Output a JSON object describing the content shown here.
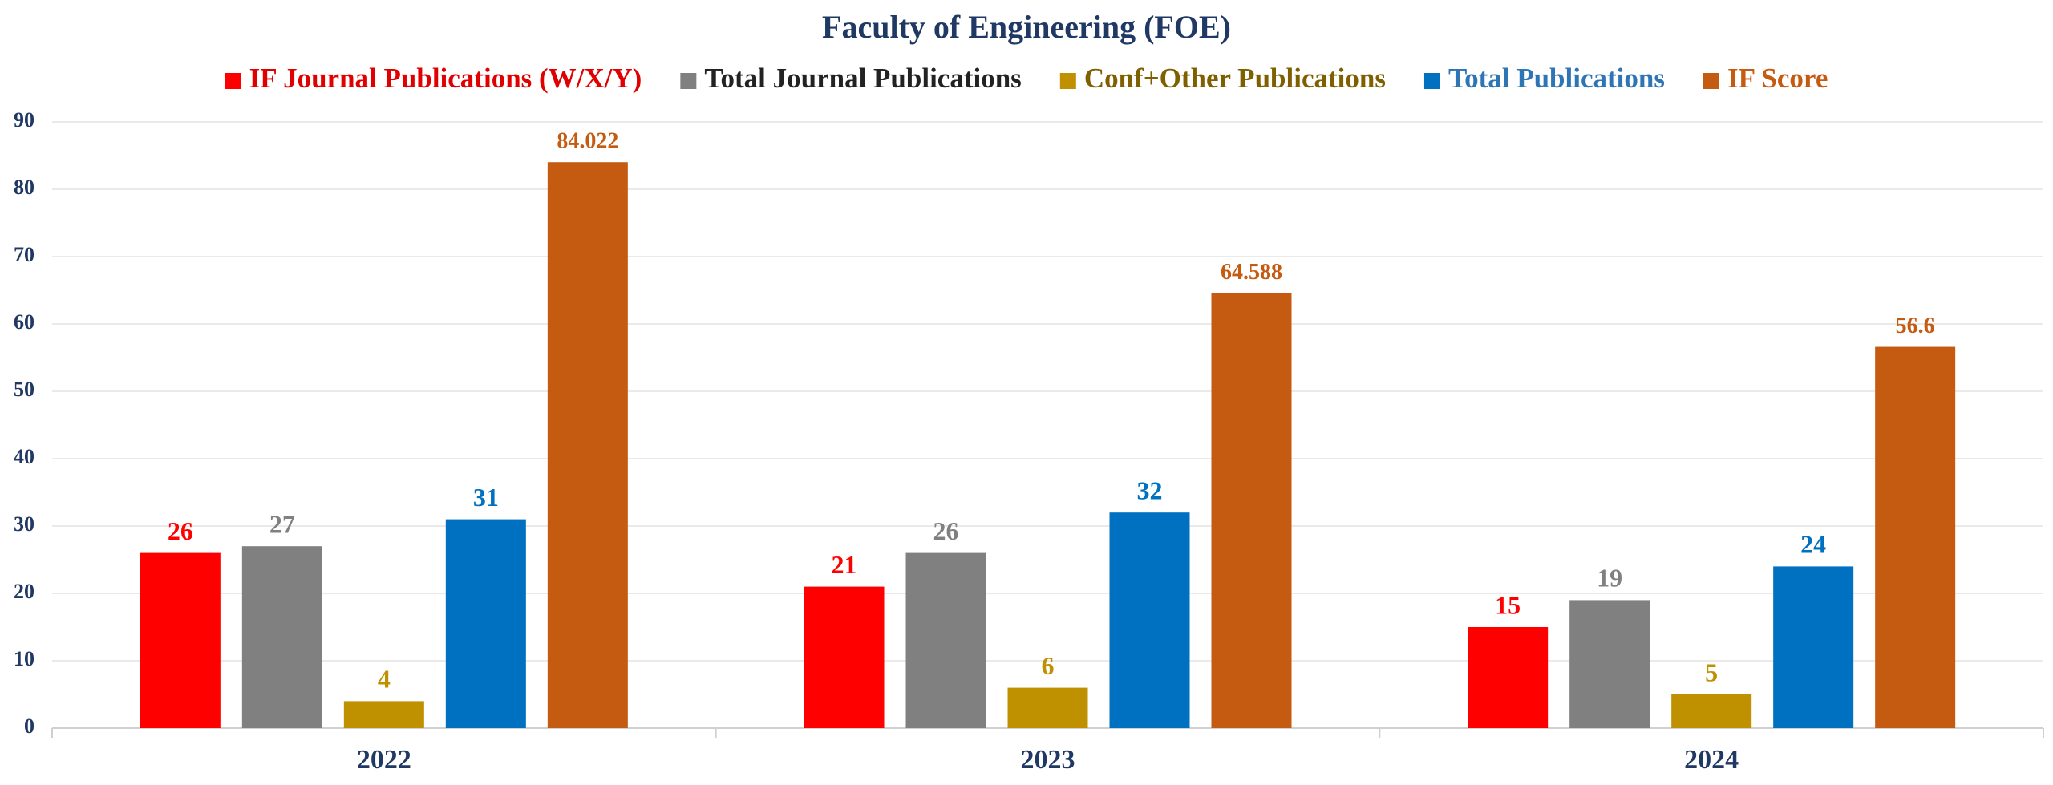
{
  "chart_data": {
    "type": "bar",
    "title": "Faculty of Engineering (FOE)",
    "categories": [
      "2022",
      "2023",
      "2024"
    ],
    "series": [
      {
        "name": "IF Journal Publications (W/X/Y)",
        "color": "#ff0000",
        "label_color": "#e00000",
        "values": [
          26,
          21,
          15
        ]
      },
      {
        "name": "Total Journal Publications",
        "color": "#808080",
        "label_color": "#222222",
        "values": [
          27,
          26,
          19
        ]
      },
      {
        "name": "Conf+Other Publications",
        "color": "#bf9000",
        "label_color": "#7f6000",
        "values": [
          4,
          6,
          5
        ]
      },
      {
        "name": "Total Publications",
        "color": "#0070c0",
        "label_color": "#2e75b6",
        "values": [
          31,
          32,
          24
        ]
      },
      {
        "name": "IF Score",
        "color": "#c55a11",
        "label_color": "#c55a11",
        "values": [
          84.022,
          64.588,
          56.6
        ]
      }
    ],
    "ylim": [
      0,
      90
    ],
    "yticks": [
      0,
      10,
      20,
      30,
      40,
      50,
      60,
      70,
      80,
      90
    ],
    "grid": true,
    "legend": "top"
  }
}
